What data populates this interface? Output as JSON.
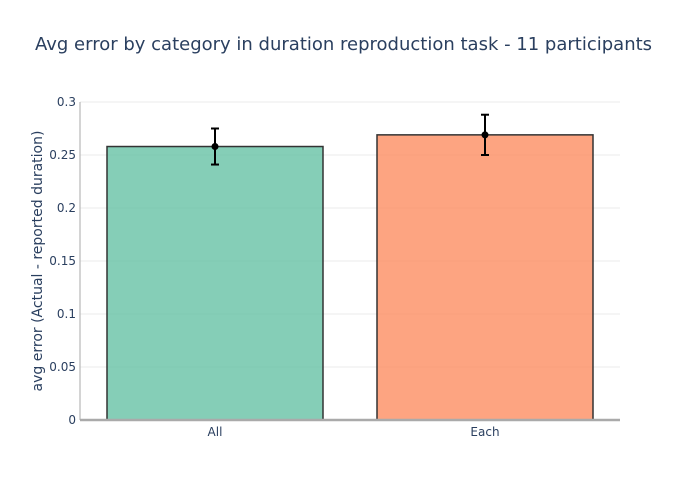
{
  "chart_data": {
    "type": "bar",
    "title": "Avg error by category in duration reproduction task - 11 participants",
    "xlabel": "",
    "ylabel": "avg error (Actual - reported duration)",
    "categories": [
      "All",
      "Each"
    ],
    "values": [
      0.258,
      0.269
    ],
    "error_low": [
      0.241,
      0.25
    ],
    "error_high": [
      0.275,
      0.288
    ],
    "ylim": [
      0,
      0.3
    ],
    "yticks": [
      0,
      0.05,
      0.1,
      0.15,
      0.2,
      0.25,
      0.3
    ],
    "ytick_labels": [
      "0",
      "0.05",
      "0.1",
      "0.15",
      "0.2",
      "0.25",
      "0.3"
    ],
    "grid": true,
    "legend": "none",
    "colors": {
      "bars": [
        "#66c2a5",
        "#fc8d62"
      ],
      "bar_opacity": 0.8,
      "bar_outline": "#333333",
      "error_bar": "#000000",
      "axis_line": "#aaaaaa",
      "grid": "#ebebeb",
      "text": "#2a3f5f"
    }
  }
}
